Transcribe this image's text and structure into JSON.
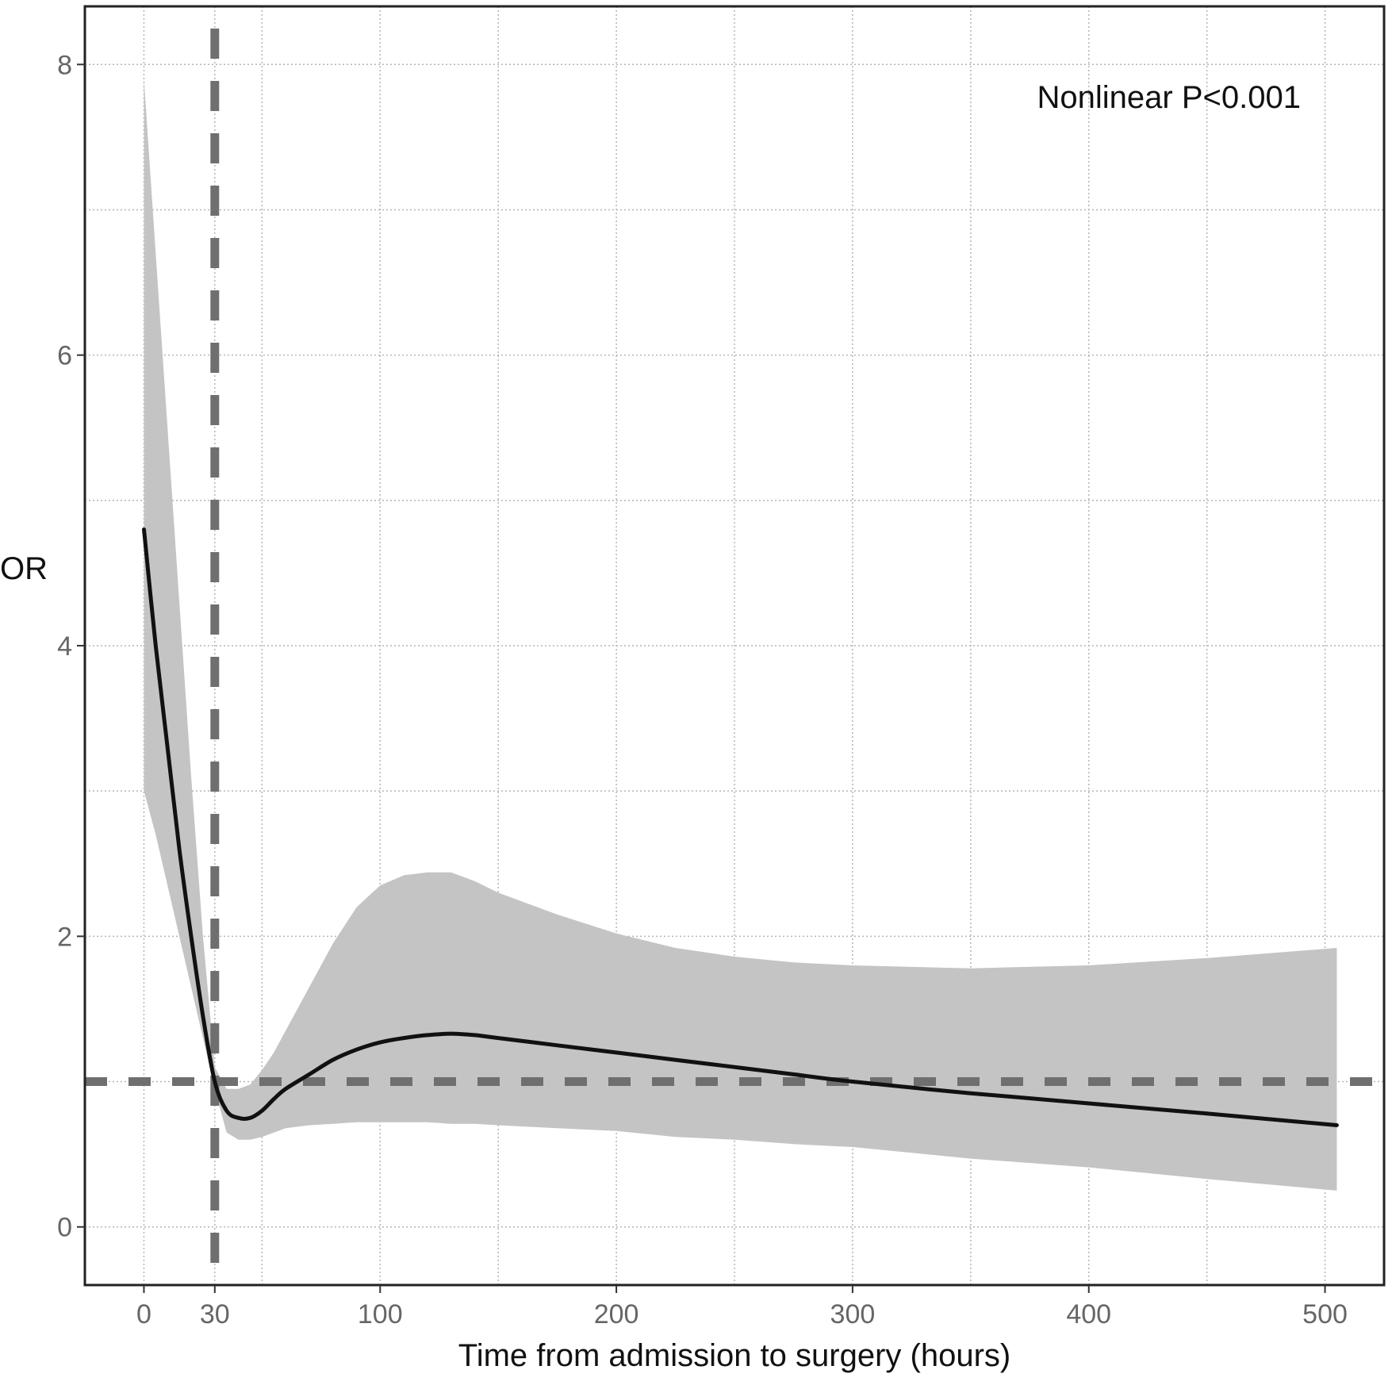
{
  "chart_data": {
    "type": "line",
    "title": "",
    "xlabel": "Time from admission to surgery (hours)",
    "ylabel": "OR",
    "xlim": [
      -25,
      525
    ],
    "ylim": [
      -0.4,
      8.4
    ],
    "x_ticks": [
      0,
      30,
      100,
      200,
      300,
      400,
      500
    ],
    "y_ticks": [
      0,
      2,
      4,
      6,
      8
    ],
    "grid": true,
    "annotation": "Nonlinear P<0.001",
    "reference_lines": {
      "horizontal_y": 1,
      "vertical_x": 30
    },
    "series": [
      {
        "style": "solid black line with grey confidence band",
        "x": [
          0,
          5,
          10,
          15,
          20,
          25,
          30,
          35,
          40,
          45,
          50,
          55,
          60,
          70,
          80,
          90,
          100,
          110,
          120,
          130,
          140,
          150,
          175,
          200,
          225,
          250,
          275,
          300,
          350,
          400,
          450,
          505
        ],
        "y": [
          4.8,
          4.0,
          3.3,
          2.6,
          2.0,
          1.45,
          1.0,
          0.8,
          0.75,
          0.75,
          0.8,
          0.88,
          0.95,
          1.05,
          1.15,
          1.22,
          1.27,
          1.3,
          1.32,
          1.33,
          1.32,
          1.3,
          1.25,
          1.2,
          1.15,
          1.1,
          1.05,
          1.0,
          0.92,
          0.85,
          0.78,
          0.7
        ],
        "lower": [
          3.0,
          2.7,
          2.35,
          2.0,
          1.65,
          1.3,
          0.95,
          0.65,
          0.6,
          0.6,
          0.62,
          0.65,
          0.68,
          0.7,
          0.71,
          0.72,
          0.72,
          0.72,
          0.72,
          0.71,
          0.71,
          0.7,
          0.68,
          0.66,
          0.62,
          0.6,
          0.57,
          0.55,
          0.47,
          0.41,
          0.33,
          0.25
        ],
        "upper": [
          7.9,
          6.7,
          5.5,
          4.3,
          3.1,
          2.0,
          1.1,
          0.95,
          0.95,
          0.98,
          1.08,
          1.2,
          1.35,
          1.65,
          1.95,
          2.2,
          2.35,
          2.42,
          2.44,
          2.44,
          2.38,
          2.3,
          2.15,
          2.02,
          1.92,
          1.86,
          1.82,
          1.8,
          1.78,
          1.8,
          1.85,
          1.92
        ]
      }
    ]
  }
}
